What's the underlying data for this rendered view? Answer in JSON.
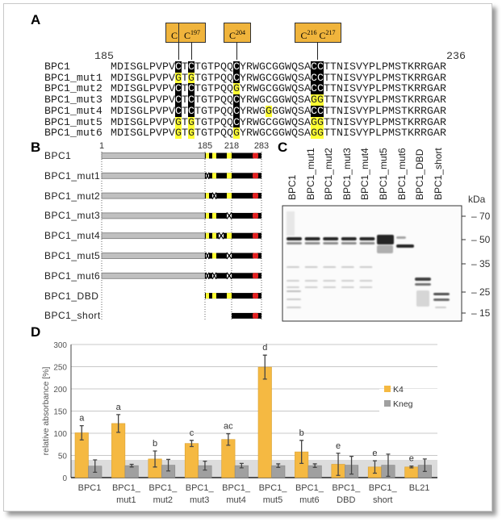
{
  "panels": {
    "a": "A",
    "b": "B",
    "c": "C",
    "d": "D"
  },
  "panel_a": {
    "start": "185",
    "end": "236",
    "start_residue": 185,
    "cys_positions": [
      195,
      197,
      204,
      216,
      217
    ],
    "boxes": [
      {
        "letter": "C",
        "num": "195"
      },
      {
        "letter": "C",
        "num": "197"
      },
      {
        "letter": "C",
        "num": "204"
      },
      {
        "letter": "C",
        "num": "216",
        "letter2": "C",
        "num2": "217"
      }
    ],
    "rows": [
      {
        "name": "BPC1",
        "seq": "MDISGLPVPVCTCTGTPQQCYRWGCGGWQSACCTTNISVYPLPMSTKRRGAR"
      },
      {
        "name": "BPC1_mut1",
        "seq": "MDISGLPVPVGTGTGTPQQCYRWGCGGWQSACCTTNISVYPLPMSTKRRGAR"
      },
      {
        "name": "BPC1_mut2",
        "seq": "MDISGLPVPVCTCTGTPQQGYRWGCGGWQSACCTTNISVYPLPMSTKRRGAR"
      },
      {
        "name": "BPC1_mut3",
        "seq": "MDISGLPVPVCTCTGTPQQCYRWGCGGWQSAGGTTNISVYPLPMSTKRRGAR"
      },
      {
        "name": "BPC1_mut4",
        "seq": "MDISGLPVPVCTCTGTPQQCYRWGGGGWQSACCTTNISVYPLPMSTKRRGAR"
      },
      {
        "name": "BPC1_mut5",
        "seq": "MDISGLPVPVGTGTGTPQQCYRWGCGGWQSAGGTTNISVYPLPMSTKRRGAR"
      },
      {
        "name": "BPC1_mut6",
        "seq": "MDISGLPVPVGTGTGTPQQGYRWGCGGWQSAGGTTNISVYPLPMSTKRRGAR"
      }
    ],
    "colors": {
      "cysteine": "#000000",
      "mutation": "#ffff33",
      "box": "#f0b43c"
    }
  },
  "panel_b": {
    "ticks": [
      {
        "label": "1",
        "pos": 1
      },
      {
        "label": "185",
        "pos": 185
      },
      {
        "label": "218",
        "pos": 218
      },
      {
        "label": "283",
        "pos": 283
      }
    ],
    "constructs": [
      {
        "name": "BPC1",
        "start": 1,
        "sites": [
          "Y",
          "Y",
          "B",
          "Y"
        ]
      },
      {
        "name": "BPC1_mut1",
        "start": 1,
        "sites": [
          "X",
          "Y",
          "B",
          "Y"
        ]
      },
      {
        "name": "BPC1_mut2",
        "start": 1,
        "sites": [
          "Y",
          "X",
          "B",
          "Y"
        ]
      },
      {
        "name": "BPC1_mut3",
        "start": 1,
        "sites": [
          "Y",
          "Y",
          "B",
          "X"
        ]
      },
      {
        "name": "BPC1_mut4",
        "start": 1,
        "sites": [
          "Y",
          "Y",
          "X",
          "Y"
        ]
      },
      {
        "name": "BPC1_mut5",
        "start": 1,
        "sites": [
          "X",
          "Y",
          "B",
          "X"
        ]
      },
      {
        "name": "BPC1_mut6",
        "start": 1,
        "sites": [
          "X",
          "X",
          "B",
          "X"
        ]
      },
      {
        "name": "BPC1_DBD",
        "start": 185,
        "sites": [
          "Y",
          "Y",
          "B",
          "Y"
        ]
      },
      {
        "name": "BPC1_short",
        "start": 218,
        "sites": []
      }
    ],
    "colors": {
      "nterm": "#c0c0c0",
      "domain": "#000000",
      "site": "#ffff33",
      "nls": "#e02020"
    }
  },
  "panel_c": {
    "lanes": [
      "BPC1",
      "BPC1_mut1",
      "BPC1_mut2",
      "BPC1_mut3",
      "BPC1_mut4",
      "BPC1_mut5",
      "BPC1_mut6",
      "BPC1_DBD",
      "BPC1_short"
    ],
    "unit": "kDa",
    "markers": [
      "70",
      "50",
      "35",
      "25",
      "15"
    ]
  },
  "chart_data": {
    "type": "bar",
    "title": "",
    "xlabel": "",
    "ylabel": "relative absorbance [%]",
    "ylim": [
      0,
      300
    ],
    "yticks": [
      "0",
      "50",
      "100",
      "150",
      "200",
      "250",
      "300"
    ],
    "grid": true,
    "legend": "right",
    "background_band": [
      0,
      40
    ],
    "categories": [
      [
        "BPC1"
      ],
      [
        "BPC1_",
        "mut1"
      ],
      [
        "BPC1_",
        "mut2"
      ],
      [
        "BPC1_",
        "mut3"
      ],
      [
        "BPC1_",
        "mut4"
      ],
      [
        "BPC1_",
        "mut5"
      ],
      [
        "BPC1_",
        "mut6"
      ],
      [
        "BPC1_",
        "DBD"
      ],
      [
        "BPC1_",
        "short"
      ],
      [
        "BL21"
      ]
    ],
    "series": [
      {
        "name": "K4",
        "color": "#f5b942",
        "values": [
          101,
          122,
          42,
          77,
          86,
          249,
          58,
          30,
          24,
          24
        ],
        "errors": [
          16,
          20,
          18,
          7,
          13,
          27,
          26,
          25,
          14,
          2
        ]
      },
      {
        "name": "Kneg",
        "color": "#a0a0a0",
        "values": [
          26,
          27,
          28,
          27,
          27,
          27,
          27,
          28,
          28,
          28
        ],
        "errors": [
          14,
          3,
          13,
          10,
          5,
          4,
          4,
          20,
          25,
          14
        ]
      }
    ],
    "significance": [
      "a",
      "a",
      "b",
      "c",
      "ac",
      "d",
      "b",
      "e",
      "e",
      "e"
    ]
  }
}
